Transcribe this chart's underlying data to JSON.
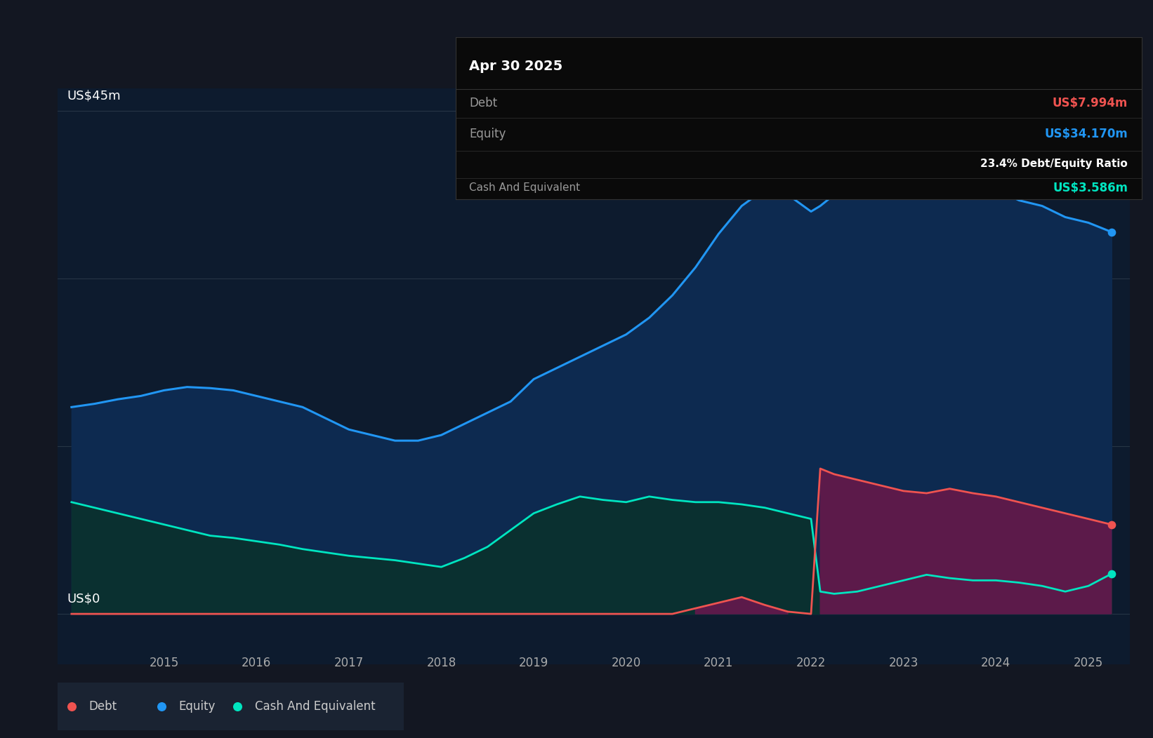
{
  "background_color": "#131722",
  "plot_bg_color": "#0d1b2e",
  "equity_color": "#2196f3",
  "equity_fill": "#0d2a50",
  "cash_color": "#00e5c0",
  "cash_fill": "#0a3030",
  "debt_color": "#ef5350",
  "debt_fill": "#5c1a4a",
  "grid_color": "#263545",
  "text_color": "#ffffff",
  "label_color": "#aaaaaa",
  "tooltip_bg": "#0a0a0a",
  "legend_bg": "#1a2332",
  "ylabel_top": "US$45m",
  "ylabel_bot": "US$0",
  "years": [
    2014.0,
    2014.25,
    2014.5,
    2014.75,
    2015.0,
    2015.25,
    2015.5,
    2015.75,
    2016.0,
    2016.25,
    2016.5,
    2016.75,
    2017.0,
    2017.25,
    2017.5,
    2017.75,
    2018.0,
    2018.25,
    2018.5,
    2018.75,
    2019.0,
    2019.25,
    2019.5,
    2019.75,
    2020.0,
    2020.25,
    2020.5,
    2020.75,
    2021.0,
    2021.25,
    2021.5,
    2021.75,
    2022.0,
    2022.1,
    2022.25,
    2022.5,
    2022.75,
    2023.0,
    2023.25,
    2023.5,
    2023.75,
    2024.0,
    2024.25,
    2024.5,
    2024.75,
    2025.0,
    2025.25
  ],
  "equity": [
    18.5,
    18.8,
    19.2,
    19.5,
    20.0,
    20.3,
    20.2,
    20.0,
    19.5,
    19.0,
    18.5,
    17.5,
    16.5,
    16.0,
    15.5,
    15.5,
    16.0,
    17.0,
    18.0,
    19.0,
    21.0,
    22.0,
    23.0,
    24.0,
    25.0,
    26.5,
    28.5,
    31.0,
    34.0,
    36.5,
    38.0,
    37.5,
    36.0,
    36.5,
    37.5,
    38.5,
    39.5,
    40.5,
    41.0,
    40.0,
    39.0,
    38.0,
    37.0,
    36.5,
    35.5,
    35.0,
    34.17
  ],
  "cash": [
    10.0,
    9.5,
    9.0,
    8.5,
    8.0,
    7.5,
    7.0,
    6.8,
    6.5,
    6.2,
    5.8,
    5.5,
    5.2,
    5.0,
    4.8,
    4.5,
    4.2,
    5.0,
    6.0,
    7.5,
    9.0,
    9.8,
    10.5,
    10.2,
    10.0,
    10.5,
    10.2,
    10.0,
    10.0,
    9.8,
    9.5,
    9.0,
    8.5,
    2.0,
    1.8,
    2.0,
    2.5,
    3.0,
    3.5,
    3.2,
    3.0,
    3.0,
    2.8,
    2.5,
    2.0,
    2.5,
    3.586
  ],
  "debt": [
    0.0,
    0.0,
    0.0,
    0.0,
    0.0,
    0.0,
    0.0,
    0.0,
    0.0,
    0.0,
    0.0,
    0.0,
    0.0,
    0.0,
    0.0,
    0.0,
    0.0,
    0.0,
    0.0,
    0.0,
    0.0,
    0.0,
    0.0,
    0.0,
    0.0,
    0.0,
    0.0,
    0.5,
    1.0,
    1.5,
    0.8,
    0.2,
    0.0,
    13.0,
    12.5,
    12.0,
    11.5,
    11.0,
    10.8,
    11.2,
    10.8,
    10.5,
    10.0,
    9.5,
    9.0,
    8.5,
    7.994
  ],
  "tooltip_date": "Apr 30 2025",
  "tooltip_debt_label": "Debt",
  "tooltip_debt_val": "US$7.994m",
  "tooltip_equity_label": "Equity",
  "tooltip_equity_val": "US$34.170m",
  "tooltip_ratio": "23.4% Debt/Equity Ratio",
  "tooltip_cash_label": "Cash And Equivalent",
  "tooltip_cash_val": "US$3.586m",
  "xlim": [
    2013.85,
    2025.45
  ],
  "ylim": [
    -4.5,
    47
  ],
  "xticks": [
    2015,
    2016,
    2017,
    2018,
    2019,
    2020,
    2021,
    2022,
    2023,
    2024,
    2025
  ],
  "ytick_lines": [
    0,
    15,
    30,
    45
  ]
}
